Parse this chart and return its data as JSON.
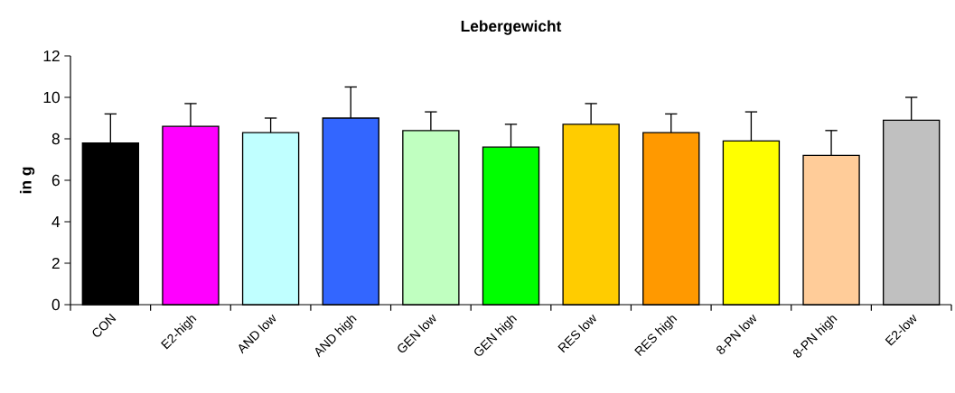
{
  "chart_data": {
    "type": "bar",
    "title": "Lebergewicht",
    "ylabel": "in g",
    "categories": [
      "CON",
      "E2-high",
      "AND low",
      "AND high",
      "GEN low",
      "GEN high",
      "RES low",
      "RES high",
      "8-PN low",
      "8-PN high",
      "E2-low"
    ],
    "values": [
      7.8,
      8.6,
      8.3,
      9.0,
      8.4,
      7.6,
      8.7,
      8.3,
      7.9,
      7.2,
      8.9
    ],
    "errors": [
      [
        7.8,
        9.2
      ],
      [
        8.6,
        9.7
      ],
      [
        8.3,
        9.0
      ],
      [
        9.0,
        10.5
      ],
      [
        8.4,
        9.3
      ],
      [
        7.6,
        8.7
      ],
      [
        8.7,
        9.7
      ],
      [
        8.3,
        9.2
      ],
      [
        7.9,
        9.3
      ],
      [
        7.2,
        8.4
      ],
      [
        8.9,
        10.0
      ]
    ],
    "colors": [
      "#000000",
      "#ff00ff",
      "#c0ffff",
      "#3366ff",
      "#c0ffc0",
      "#00ff00",
      "#ffcc00",
      "#ff9900",
      "#ffff00",
      "#ffcc99",
      "#c0c0c0"
    ],
    "ylim": [
      0,
      12
    ],
    "yticks": [
      0,
      2,
      4,
      6,
      8,
      10,
      12
    ]
  }
}
